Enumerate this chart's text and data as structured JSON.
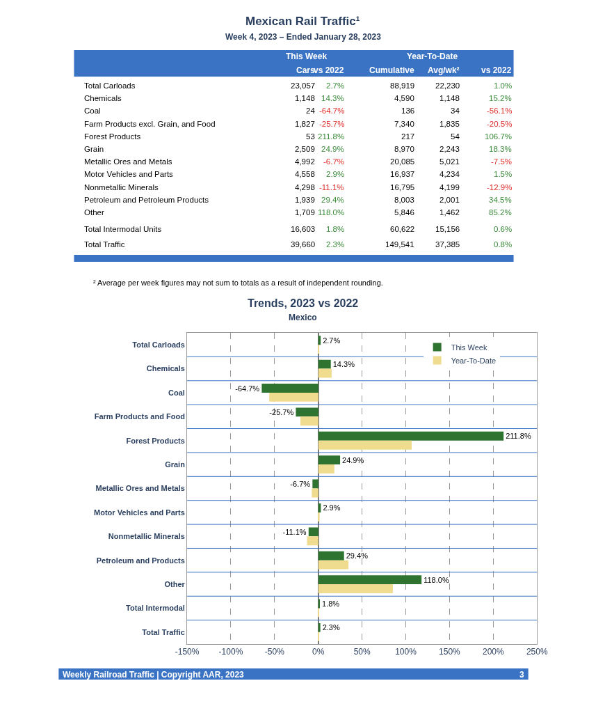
{
  "chart_data": [
    {
      "type": "other",
      "title": "Mexican Rail Traffic¹",
      "subtitle": "Week 4, 2023 – Ended January 28, 2023",
      "categories": [
        "Total Carloads",
        "Chemicals",
        "Coal",
        "Farm Products excl. Grain, and Food",
        "Forest Products",
        "Grain",
        "Metallic Ores and Metals",
        "Motor Vehicles and Parts",
        "Nonmetallic Minerals",
        "Petroleum and Petroleum Products",
        "Other",
        "Total Intermodal Units",
        "Total Traffic"
      ],
      "series": [
        {
          "values": [
            23057,
            1148,
            24,
            1827,
            53,
            2509,
            4992,
            4558,
            4298,
            1939,
            1709,
            16603,
            39660
          ],
          "value_labels": [
            "23,057",
            "1,148",
            "24",
            "1,827",
            "53",
            "2,509",
            "4,992",
            "4,558",
            "4,298",
            "1,939",
            "1,709",
            "16,603",
            "39,660"
          ]
        },
        {
          "values": [
            2.7,
            14.3,
            -64.7,
            -25.7,
            211.8,
            24.9,
            -6.7,
            2.9,
            -11.1,
            29.4,
            118.0,
            1.8,
            2.3
          ],
          "value_labels": [
            "2.7%",
            "14.3%",
            "-64.7%",
            "-25.7%",
            "211.8%",
            "24.9%",
            "-6.7%",
            "2.9%",
            "-11.1%",
            "29.4%",
            "118.0%",
            "1.8%",
            "2.3%"
          ]
        },
        {
          "values": [
            88919,
            4590,
            136,
            7340,
            217,
            8970,
            20085,
            16937,
            16795,
            8003,
            5846,
            60622,
            149541
          ],
          "value_labels": [
            "88,919",
            "4,590",
            "136",
            "7,340",
            "217",
            "8,970",
            "20,085",
            "16,937",
            "16,795",
            "8,003",
            "5,846",
            "60,622",
            "149,541"
          ]
        },
        {
          "values": [
            22230,
            1148,
            34,
            1835,
            54,
            2243,
            5021,
            4234,
            4199,
            2001,
            1462,
            15156,
            37385
          ],
          "value_labels": [
            "22,230",
            "1,148",
            "34",
            "1,835",
            "54",
            "2,243",
            "5,021",
            "4,234",
            "4,199",
            "2,001",
            "1,462",
            "15,156",
            "37,385"
          ]
        },
        {
          "values": [
            1.0,
            15.2,
            -56.1,
            -20.5,
            106.7,
            18.3,
            -7.5,
            1.5,
            -12.9,
            34.5,
            85.2,
            0.6,
            0.8
          ],
          "value_labels": [
            "1.0%",
            "15.2%",
            "-56.1%",
            "-20.5%",
            "106.7%",
            "18.3%",
            "-7.5%",
            "1.5%",
            "-12.9%",
            "34.5%",
            "85.2%",
            "0.6%",
            "0.8%"
          ]
        }
      ],
      "annotations": [
        "This Week",
        "Year-To-Date",
        "Cars",
        "vs 2022",
        "Cumulative",
        "Avg/wk²",
        "vs 2022",
        "² Average per week figures may not sum to totals as a result of independent rounding."
      ]
    },
    {
      "type": "bar",
      "orientation": "horizontal",
      "title": "Trends, 2023 vs 2022",
      "subtitle": "Mexico",
      "categories": [
        "Total Carloads",
        "Chemicals",
        "Coal",
        "Farm Products and Food",
        "Forest Products",
        "Grain",
        "Metallic Ores and Metals",
        "Motor Vehicles and Parts",
        "Nonmetallic Minerals",
        "Petroleum and Products",
        "Other",
        "Total Intermodal",
        "Total Traffic"
      ],
      "series": [
        {
          "name": "This Week",
          "color": "#2e7430",
          "values": [
            2.7,
            14.3,
            -64.7,
            -25.7,
            211.8,
            24.9,
            -6.7,
            2.9,
            -11.1,
            29.4,
            118.0,
            1.8,
            2.3
          ],
          "value_labels": [
            "2.7%",
            "14.3%",
            "-64.7%",
            "-25.7%",
            "211.8%",
            "24.9%",
            "-6.7%",
            "2.9%",
            "-11.1%",
            "29.4%",
            "118.0%",
            "1.8%",
            "2.3%"
          ]
        },
        {
          "name": "Year-To-Date",
          "color": "#f0dc8e",
          "values": [
            1.0,
            15.2,
            -56.1,
            -20.5,
            106.7,
            18.3,
            -7.5,
            1.5,
            -12.9,
            34.5,
            85.2,
            0.6,
            0.8
          ]
        }
      ],
      "xlim": [
        -150,
        250
      ],
      "xticks": [
        {
          "value": -150,
          "label": "-150%"
        },
        {
          "value": -100,
          "label": "-100%"
        },
        {
          "value": -50,
          "label": "-50%"
        },
        {
          "value": 0,
          "label": "0%"
        },
        {
          "value": 50,
          "label": "50%"
        },
        {
          "value": 100,
          "label": "100%"
        },
        {
          "value": 150,
          "label": "150%"
        },
        {
          "value": 200,
          "label": "200%"
        },
        {
          "value": 250,
          "label": "250%"
        }
      ],
      "grid": "x",
      "legend": "top right",
      "annotations": [
        "Weekly Railroad Traffic | Copyright AAR, 2023",
        "3"
      ]
    }
  ]
}
